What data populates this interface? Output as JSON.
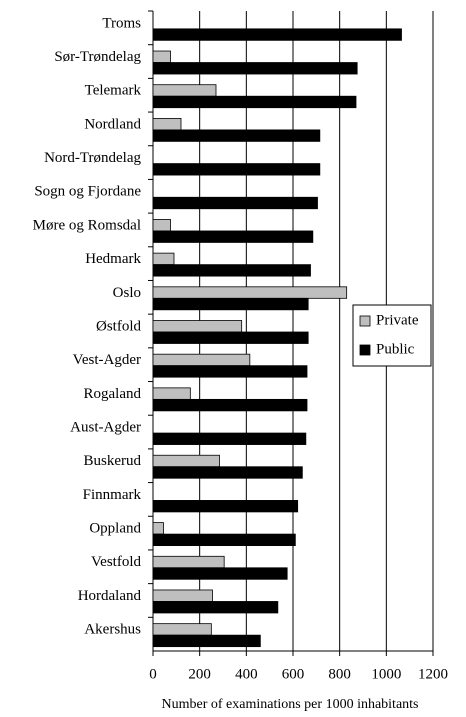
{
  "chart_data": {
    "type": "hbar",
    "xlabel": "Number of examinations per 1000 inhabitants",
    "categories": [
      "Troms",
      "Sør-Trøndelag",
      "Telemark",
      "Nordland",
      "Nord-Trøndelag",
      "Sogn og Fjordane",
      "Møre og Romsdal",
      "Hedmark",
      "Oslo",
      "Østfold",
      "Vest-Agder",
      "Rogaland",
      "Aust-Agder",
      "Buskerud",
      "Finnmark",
      "Oppland",
      "Vestfold",
      "Hordaland",
      "Akershus"
    ],
    "series": [
      {
        "name": "Private",
        "color": "#bfbfbf",
        "values": [
          0,
          75,
          270,
          120,
          0,
          0,
          75,
          90,
          830,
          380,
          415,
          160,
          0,
          285,
          0,
          45,
          305,
          255,
          250
        ]
      },
      {
        "name": "Public",
        "color": "#000000",
        "values": [
          1065,
          875,
          870,
          715,
          715,
          705,
          685,
          675,
          665,
          665,
          660,
          660,
          655,
          640,
          620,
          610,
          575,
          535,
          460
        ]
      }
    ],
    "xlim": [
      0,
      1200
    ],
    "xticks": [
      0,
      200,
      400,
      600,
      800,
      1000,
      1200
    ],
    "grid": true,
    "legend": "right"
  }
}
